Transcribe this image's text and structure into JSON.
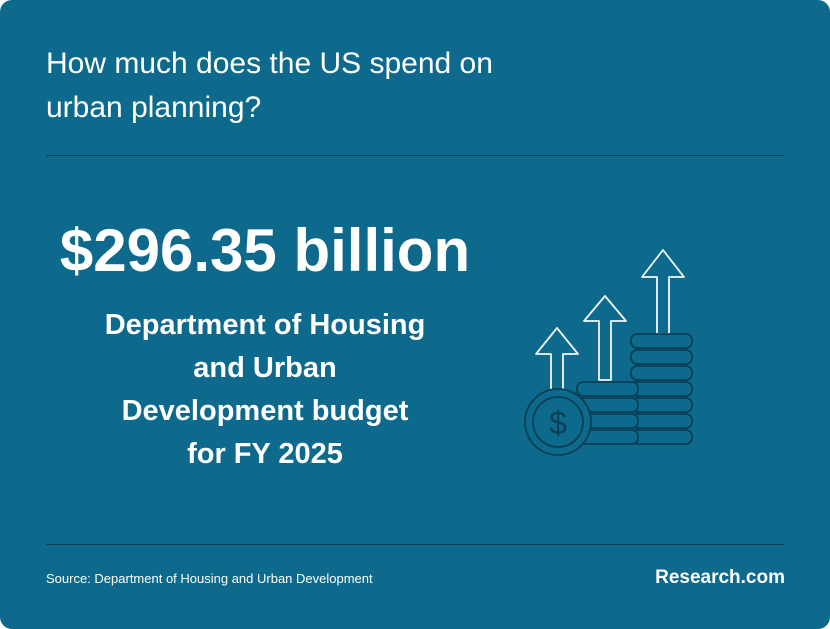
{
  "colors": {
    "background": "#0d6a8c",
    "text": "#ffffff",
    "divider": "#0a3f55",
    "icon_stroke": "#0a3f55",
    "icon_fill": "#0d6a8c"
  },
  "header": {
    "title": "How much does the US spend on\nurban planning?"
  },
  "stat": {
    "amount": "$296.35 billion",
    "description": "Department of Housing\nand Urban\nDevelopment budget\nfor FY 2025"
  },
  "illustration": {
    "icon": "coins-growth-arrows-icon",
    "symbol": "$"
  },
  "footer": {
    "source": "Source:  Department of Housing and Urban Development",
    "brand": "Research.com"
  }
}
